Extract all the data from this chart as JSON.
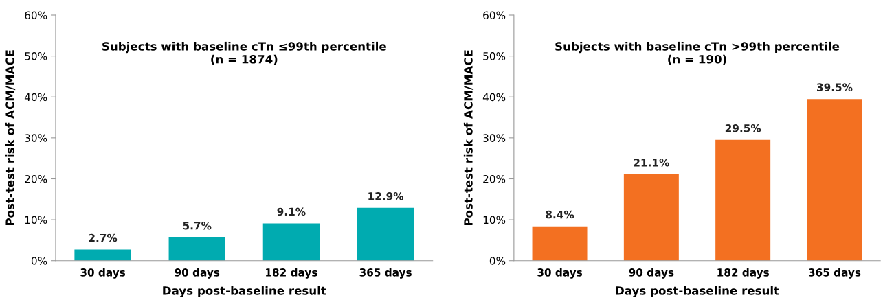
{
  "chart_data": [
    {
      "type": "bar",
      "title": "Subjects with baseline cTn ≤99th percentile\n(n = 1874)",
      "xlabel": "Days post-baseline result",
      "ylabel": "Post-test risk of ACM/MACE",
      "categories": [
        "30 days",
        "90 days",
        "182 days",
        "365 days"
      ],
      "values": [
        2.7,
        5.7,
        9.1,
        12.9
      ],
      "value_labels": [
        "2.7%",
        "5.7%",
        "9.1%",
        "12.9%"
      ],
      "color": "#00abb0",
      "ylim": [
        0,
        60
      ],
      "yticks": [
        {
          "value": 0,
          "label": "0%"
        },
        {
          "value": 10,
          "label": "10%"
        },
        {
          "value": 20,
          "label": "20%"
        },
        {
          "value": 30,
          "label": "30%"
        },
        {
          "value": 40,
          "label": "40%"
        },
        {
          "value": 50,
          "label": "50%"
        },
        {
          "value": 60,
          "label": "60%"
        }
      ]
    },
    {
      "type": "bar",
      "title": "Subjects with baseline cTn >99th percentile\n(n = 190)",
      "xlabel": "Days post-baseline result",
      "ylabel": "Post-test risk of ACM/MACE",
      "categories": [
        "30 days",
        "90 days",
        "182 days",
        "365 days"
      ],
      "values": [
        8.4,
        21.1,
        29.5,
        39.5
      ],
      "value_labels": [
        "8.4%",
        "21.1%",
        "29.5%",
        "39.5%"
      ],
      "color": "#f37021",
      "ylim": [
        0,
        60
      ],
      "yticks": [
        {
          "value": 0,
          "label": "0%"
        },
        {
          "value": 10,
          "label": "10%"
        },
        {
          "value": 20,
          "label": "20%"
        },
        {
          "value": 30,
          "label": "30%"
        },
        {
          "value": 40,
          "label": "40%"
        },
        {
          "value": 50,
          "label": "50%"
        },
        {
          "value": 60,
          "label": "60%"
        }
      ]
    }
  ]
}
